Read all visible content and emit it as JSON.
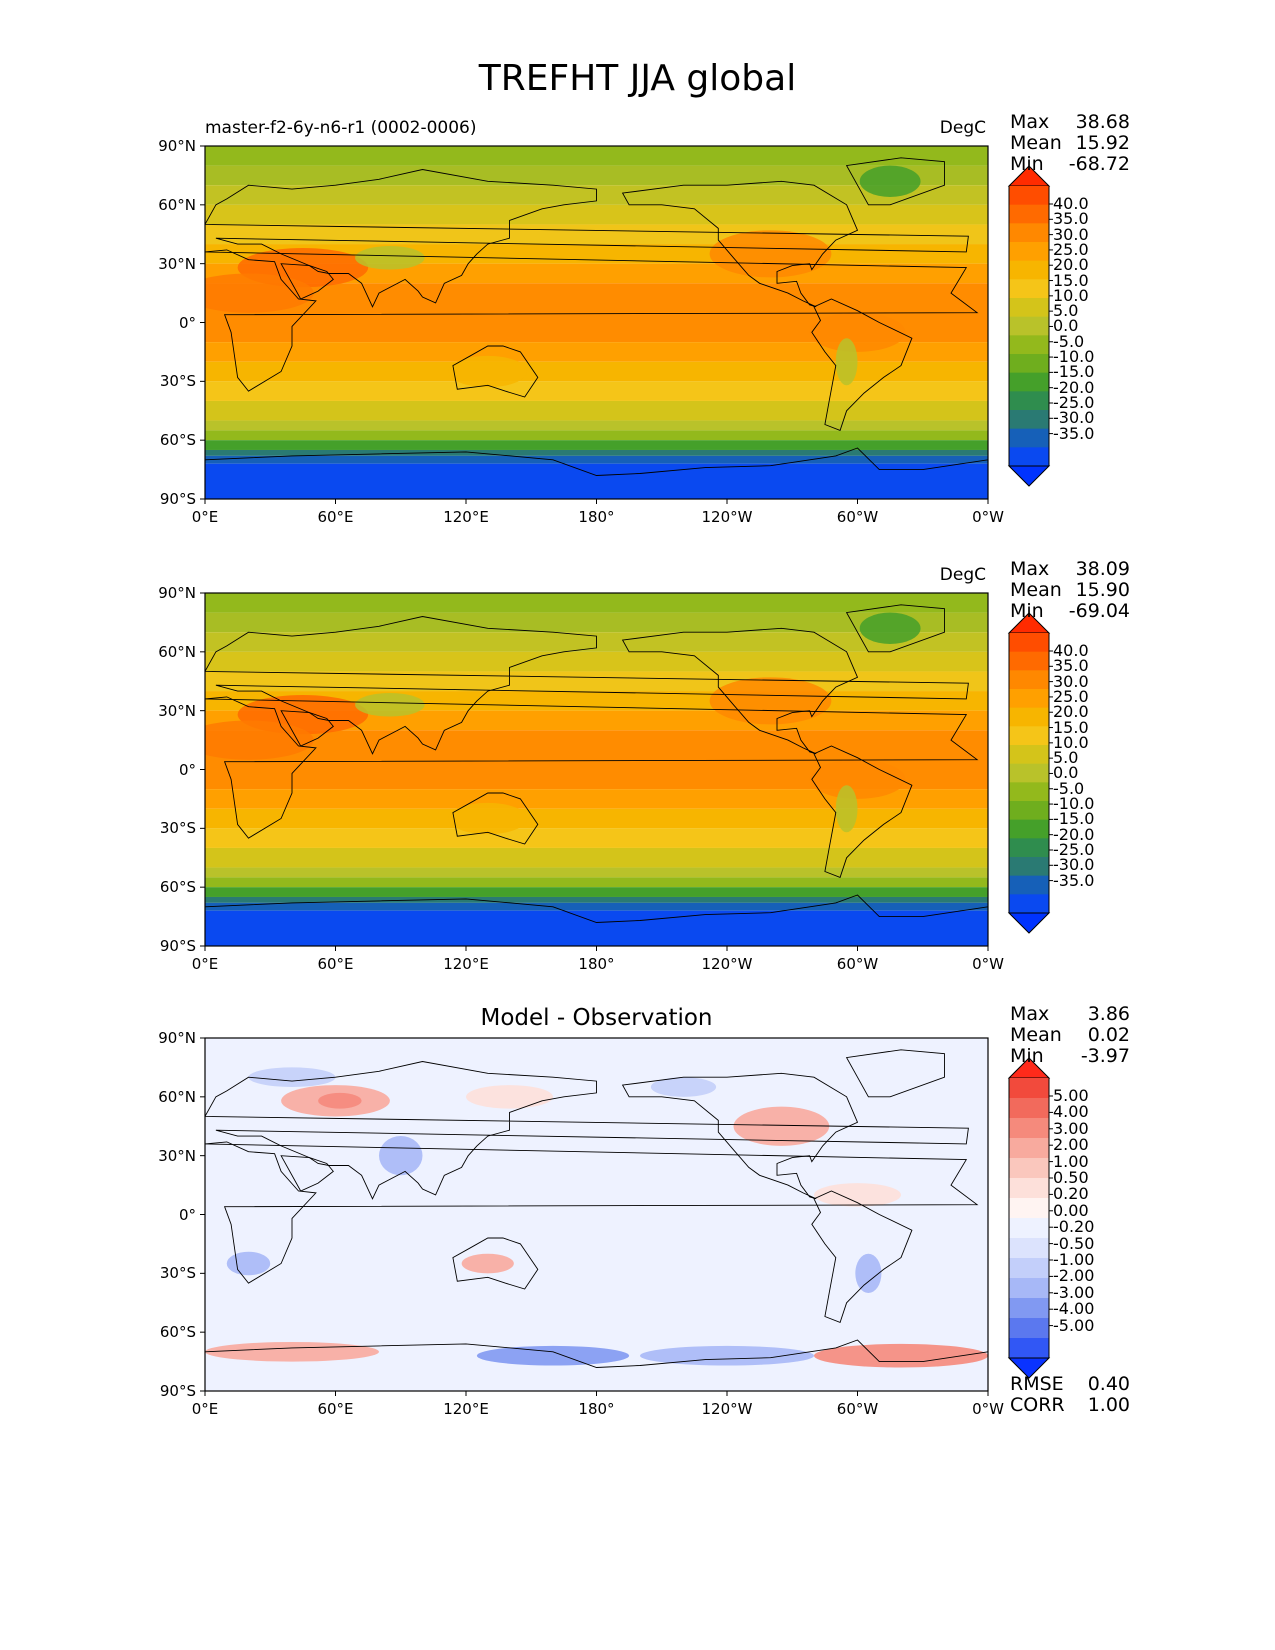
{
  "title": "TREFHT JJA global",
  "x_ticks": [
    "0°E",
    "60°E",
    "120°E",
    "180°",
    "120°W",
    "60°W",
    "0°W"
  ],
  "y_ticks": [
    "90°N",
    "60°N",
    "30°N",
    "0°",
    "30°S",
    "60°S",
    "90°S"
  ],
  "panels": [
    {
      "name": "master-f2-6y-n6-r1 (0002-0006)",
      "title": "",
      "units": "DegC",
      "stats": {
        "max_label": "Max",
        "max": "38.68",
        "mean_label": "Mean",
        "mean": "15.92",
        "min_label": "Min",
        "min": "-68.72"
      },
      "colorbar": {
        "labels": [
          "40.0",
          "35.0",
          "30.0",
          "25.0",
          "20.0",
          "15.0",
          "10.0",
          "5.0",
          "0.0",
          "-5.0",
          "-10.0",
          "-15.0",
          "-20.0",
          "-25.0",
          "-30.0",
          "-35.0"
        ],
        "colors": [
          "#ff2b00",
          "#ff4d00",
          "#ff6a00",
          "#ff8800",
          "#ffa000",
          "#f7b500",
          "#f5c518",
          "#d4c41a",
          "#b9c22a",
          "#93b91c",
          "#6fae1e",
          "#45a02a",
          "#2f8d4e",
          "#2a7a73",
          "#1660b8",
          "#0a49f0",
          "#0033ff"
        ]
      },
      "extra": []
    },
    {
      "name": "",
      "title": "",
      "units": "DegC",
      "stats": {
        "max_label": "Max",
        "max": "38.09",
        "mean_label": "Mean",
        "mean": "15.90",
        "min_label": "Min",
        "min": "-69.04"
      },
      "colorbar": {
        "labels": [
          "40.0",
          "35.0",
          "30.0",
          "25.0",
          "20.0",
          "15.0",
          "10.0",
          "5.0",
          "0.0",
          "-5.0",
          "-10.0",
          "-15.0",
          "-20.0",
          "-25.0",
          "-30.0",
          "-35.0"
        ],
        "colors": [
          "#ff2b00",
          "#ff4d00",
          "#ff6a00",
          "#ff8800",
          "#ffa000",
          "#f7b500",
          "#f5c518",
          "#d4c41a",
          "#b9c22a",
          "#93b91c",
          "#6fae1e",
          "#45a02a",
          "#2f8d4e",
          "#2a7a73",
          "#1660b8",
          "#0a49f0",
          "#0033ff"
        ]
      },
      "extra": []
    },
    {
      "name": "",
      "title": "Model - Observation",
      "units": "",
      "stats": {
        "max_label": "Max",
        "max": "3.86",
        "mean_label": "Mean",
        "mean": "0.02",
        "min_label": "Min",
        "min": "-3.97"
      },
      "colorbar": {
        "labels": [
          "5.00",
          "4.00",
          "3.00",
          "2.00",
          "1.00",
          "0.50",
          "0.20",
          "0.00",
          "-0.20",
          "-0.50",
          "-1.00",
          "-2.00",
          "-3.00",
          "-4.00",
          "-5.00"
        ],
        "colors": [
          "#ff2a1a",
          "#f24a3c",
          "#f26a5c",
          "#f58a7c",
          "#f8aa9e",
          "#fac7bd",
          "#fde0da",
          "#fff4f2",
          "#eef2ff",
          "#dce3fd",
          "#c3cffa",
          "#a7b8f7",
          "#8199f2",
          "#5b78ef",
          "#3157f5",
          "#0a33ff"
        ]
      },
      "extra": [
        {
          "label": "RMSE",
          "value": "0.40"
        },
        {
          "label": "CORR",
          "value": "1.00"
        }
      ]
    }
  ]
}
